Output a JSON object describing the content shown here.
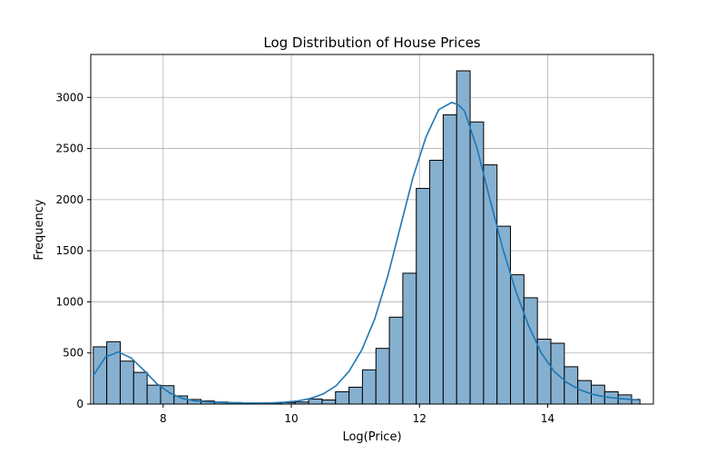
{
  "chart_data": {
    "type": "bar",
    "title": "Log Distribution of House Prices",
    "xlabel": "Log(Price)",
    "ylabel": "Frequency",
    "xlim": [
      6.87,
      15.65
    ],
    "ylim": [
      0,
      3420
    ],
    "xticks": [
      8,
      10,
      12,
      14
    ],
    "yticks": [
      0,
      500,
      1000,
      1500,
      2000,
      2500,
      3000
    ],
    "grid": true,
    "bar_color": "#86b0d0",
    "line_color": "#1f77b4",
    "bin_edges": [
      6.91,
      7.12,
      7.33,
      7.54,
      7.75,
      7.96,
      8.17,
      8.38,
      8.59,
      8.8,
      9.01,
      9.22,
      9.43,
      9.64,
      9.85,
      10.06,
      10.27,
      10.48,
      10.69,
      10.9,
      11.11,
      11.32,
      11.53,
      11.74,
      11.95,
      12.16,
      12.37,
      12.58,
      12.79,
      13.0,
      13.21,
      13.42,
      13.63,
      13.84,
      14.05,
      14.26,
      14.47,
      14.68,
      14.89,
      15.1,
      15.31,
      15.44
    ],
    "counts": [
      560,
      610,
      420,
      310,
      185,
      180,
      80,
      45,
      30,
      20,
      15,
      10,
      10,
      10,
      15,
      20,
      50,
      40,
      120,
      165,
      335,
      545,
      850,
      1280,
      2110,
      2385,
      2830,
      3260,
      2760,
      2340,
      1740,
      1265,
      1040,
      635,
      595,
      365,
      230,
      185,
      120,
      90,
      45
    ],
    "kde": {
      "x": [
        6.9,
        7.1,
        7.3,
        7.5,
        7.7,
        7.9,
        8.1,
        8.3,
        8.5,
        8.7,
        8.9,
        9.1,
        9.3,
        9.5,
        9.7,
        9.9,
        10.1,
        10.3,
        10.5,
        10.7,
        10.9,
        11.1,
        11.3,
        11.5,
        11.7,
        11.9,
        12.1,
        12.3,
        12.5,
        12.6,
        12.7,
        12.9,
        13.1,
        13.3,
        13.5,
        13.7,
        13.9,
        14.1,
        14.3,
        14.5,
        14.7,
        14.9,
        15.1,
        15.3,
        15.4
      ],
      "y": [
        270,
        460,
        510,
        450,
        330,
        200,
        110,
        55,
        30,
        20,
        15,
        12,
        10,
        10,
        12,
        18,
        30,
        55,
        100,
        180,
        320,
        530,
        830,
        1240,
        1730,
        2220,
        2610,
        2880,
        2950,
        2930,
        2870,
        2500,
        2000,
        1520,
        1110,
        770,
        500,
        320,
        210,
        140,
        95,
        70,
        55,
        45,
        40
      ]
    }
  }
}
